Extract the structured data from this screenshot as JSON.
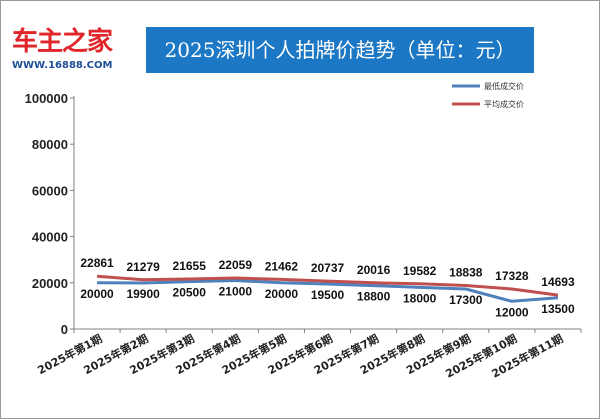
{
  "logo": {
    "name": "车主之家",
    "url": "WWW.16888.COM"
  },
  "chart_data": {
    "type": "line",
    "title": "2025深圳个人拍牌价趋势（单位：元）",
    "categories": [
      "2025年第1期",
      "2025年第2期",
      "2025年第3期",
      "2025年第4期",
      "2025年第5期",
      "2025年第6期",
      "2025年第7期",
      "2025年第8期",
      "2025年第9期",
      "2025年第10期",
      "2025年第11期"
    ],
    "series": [
      {
        "name": "最低成交价",
        "color": "#4f81bd",
        "values": [
          20000,
          19900,
          20500,
          21000,
          20000,
          19500,
          18800,
          18000,
          17300,
          12000,
          13500
        ]
      },
      {
        "name": "平均成交价",
        "color": "#c0504d",
        "values": [
          22861,
          21279,
          21655,
          22059,
          21462,
          20737,
          20016,
          19582,
          18838,
          17328,
          14693
        ]
      }
    ],
    "yticks": [
      0,
      20000,
      40000,
      60000,
      80000,
      100000
    ],
    "ylim": [
      0,
      100000
    ],
    "grid": false,
    "legend": "top-right"
  }
}
